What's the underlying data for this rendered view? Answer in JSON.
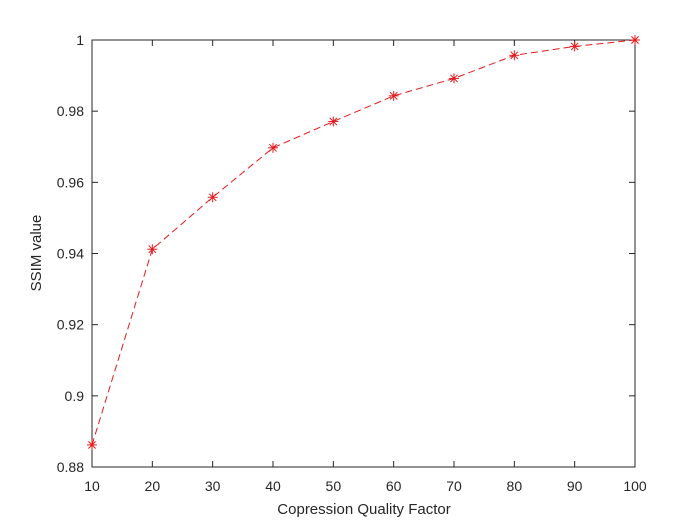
{
  "chart_data": {
    "type": "line",
    "title": "",
    "xlabel": "Copression Quality Factor",
    "ylabel": "SSIM value",
    "xlim": [
      10,
      100
    ],
    "ylim": [
      0.88,
      1
    ],
    "x_ticks": [
      10,
      20,
      30,
      40,
      50,
      60,
      70,
      80,
      90,
      100
    ],
    "x_tick_labels": [
      "10",
      "20",
      "30",
      "40",
      "50",
      "60",
      "70",
      "80",
      "90",
      "100"
    ],
    "y_ticks": [
      0.88,
      0.9,
      0.92,
      0.94,
      0.96,
      0.98,
      1
    ],
    "y_tick_labels": [
      "0.88",
      "0.9",
      "0.92",
      "0.94",
      "0.96",
      "0.98",
      "1"
    ],
    "grid": false,
    "legend": "none",
    "series": [
      {
        "x": [
          10,
          20,
          30,
          40,
          50,
          60,
          70,
          80,
          90,
          100
        ],
        "values": [
          0.8862,
          0.9412,
          0.9558,
          0.9697,
          0.9771,
          0.9843,
          0.9892,
          0.9957,
          0.9982,
          1.0
        ],
        "color": "#e41a1c",
        "line_style": "dashed",
        "marker": "asterisk"
      }
    ]
  }
}
